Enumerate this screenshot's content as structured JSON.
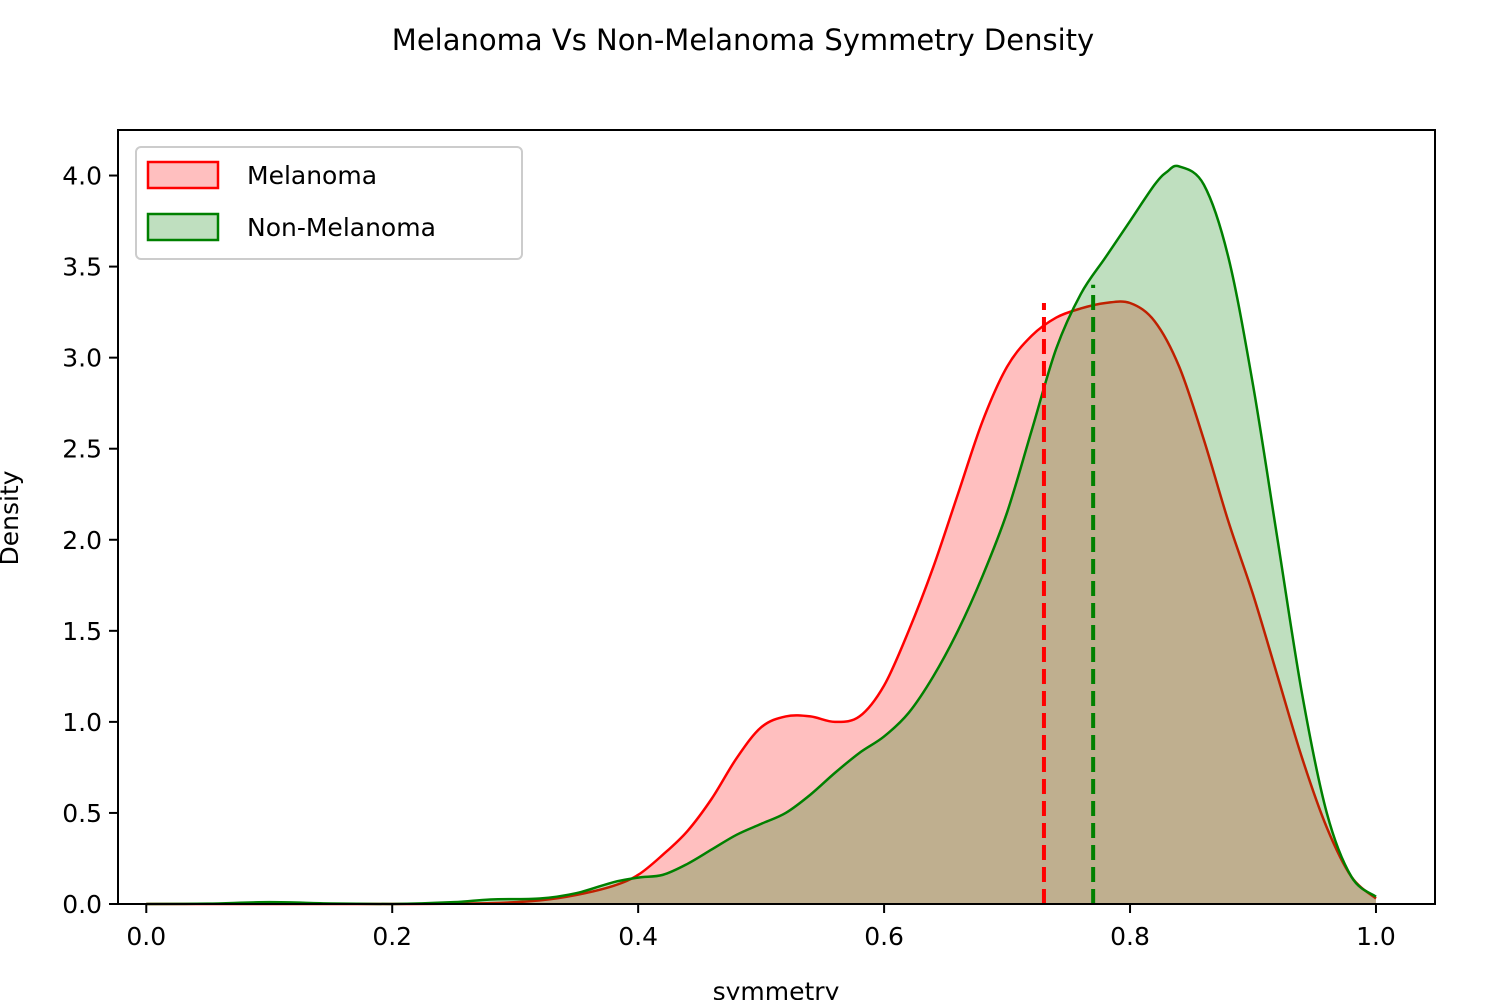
{
  "chart_data": {
    "type": "area",
    "title": "Melanoma Vs Non-Melanoma Symmetry Density",
    "xlabel": "symmetry",
    "ylabel": "Density",
    "xlim": [
      -0.023,
      1.048
    ],
    "ylim": [
      0.0,
      4.25
    ],
    "xticks": [
      0.0,
      0.2,
      0.4,
      0.6,
      0.8,
      1.0
    ],
    "xtick_labels": [
      "0.0",
      "0.2",
      "0.4",
      "0.6",
      "0.8",
      "1.0"
    ],
    "yticks": [
      0.0,
      0.5,
      1.0,
      1.5,
      2.0,
      2.5,
      3.0,
      3.5,
      4.0
    ],
    "ytick_labels": [
      "0.0",
      "0.5",
      "1.0",
      "1.5",
      "2.0",
      "2.5",
      "3.0",
      "3.5",
      "4.0"
    ],
    "grid": false,
    "legend_position": "top-left",
    "series": [
      {
        "name": "Melanoma",
        "color": "#ff0000",
        "fill": "#ff0000",
        "fill_opacity": 0.25,
        "mean_line": {
          "x": 0.73,
          "y_top": 3.3
        },
        "x": [
          0.0,
          0.1,
          0.2,
          0.28,
          0.32,
          0.35,
          0.38,
          0.4,
          0.42,
          0.44,
          0.46,
          0.48,
          0.5,
          0.52,
          0.54,
          0.56,
          0.58,
          0.6,
          0.62,
          0.64,
          0.66,
          0.68,
          0.7,
          0.72,
          0.74,
          0.76,
          0.78,
          0.8,
          0.82,
          0.84,
          0.86,
          0.88,
          0.9,
          0.92,
          0.94,
          0.96,
          0.98,
          1.0
        ],
        "values": [
          0.0,
          0.0,
          0.0,
          0.005,
          0.02,
          0.05,
          0.1,
          0.16,
          0.27,
          0.4,
          0.58,
          0.8,
          0.97,
          1.03,
          1.03,
          1.0,
          1.03,
          1.2,
          1.5,
          1.85,
          2.25,
          2.65,
          2.95,
          3.12,
          3.22,
          3.27,
          3.3,
          3.3,
          3.2,
          2.95,
          2.55,
          2.1,
          1.7,
          1.25,
          0.8,
          0.42,
          0.15,
          0.03
        ]
      },
      {
        "name": "Non-Melanoma",
        "color": "#008000",
        "fill": "#008000",
        "fill_opacity": 0.25,
        "mean_line": {
          "x": 0.77,
          "y_top": 3.4
        },
        "x": [
          0.0,
          0.05,
          0.1,
          0.15,
          0.2,
          0.25,
          0.28,
          0.32,
          0.35,
          0.38,
          0.4,
          0.42,
          0.44,
          0.46,
          0.48,
          0.5,
          0.52,
          0.54,
          0.56,
          0.58,
          0.6,
          0.62,
          0.64,
          0.66,
          0.68,
          0.7,
          0.72,
          0.74,
          0.76,
          0.78,
          0.8,
          0.82,
          0.83,
          0.84,
          0.86,
          0.88,
          0.9,
          0.92,
          0.94,
          0.96,
          0.98,
          1.0
        ],
        "values": [
          0.0,
          0.002,
          0.01,
          0.003,
          0.0,
          0.01,
          0.025,
          0.03,
          0.06,
          0.12,
          0.145,
          0.16,
          0.22,
          0.3,
          0.38,
          0.44,
          0.5,
          0.6,
          0.72,
          0.83,
          0.92,
          1.05,
          1.25,
          1.5,
          1.8,
          2.15,
          2.6,
          3.05,
          3.35,
          3.55,
          3.75,
          3.95,
          4.02,
          4.05,
          3.95,
          3.55,
          2.85,
          2.0,
          1.15,
          0.5,
          0.15,
          0.04
        ]
      }
    ]
  }
}
